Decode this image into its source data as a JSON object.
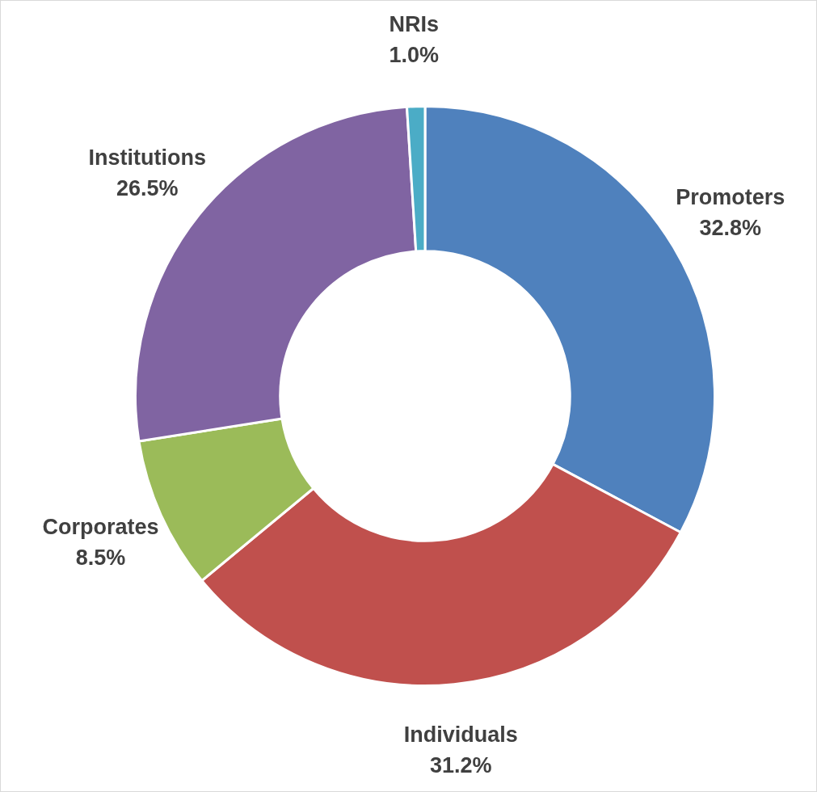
{
  "chart_data": {
    "type": "donut",
    "categories": [
      "Promoters",
      "Individuals",
      "Corporates",
      "Institutions",
      "NRIs"
    ],
    "values": [
      32.8,
      31.2,
      8.5,
      26.5,
      1.0
    ],
    "value_labels": [
      "32.8%",
      "31.2%",
      "8.5%",
      "26.5%",
      "1.0%"
    ],
    "colors": [
      "#4f81bd",
      "#c0504d",
      "#9bbb59",
      "#8064a2",
      "#4bacc6"
    ],
    "legend": false
  }
}
